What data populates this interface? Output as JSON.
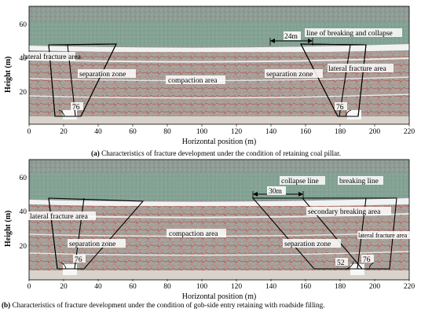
{
  "figure": {
    "panels": [
      {
        "id": "a",
        "caption_label": "(a)",
        "caption_text": " Characteristics of fracture development under the condition of retaining coal pillar.",
        "y_axis_title": "Height (m)",
        "x_axis_title": "Horizontal position (m)",
        "x_ticks": [
          "0",
          "20",
          "40",
          "60",
          "80",
          "100",
          "120",
          "140",
          "160",
          "180",
          "200",
          "220"
        ],
        "y_ticks": [
          "20",
          "40",
          "60"
        ],
        "annotations": {
          "lateral_left": "lateral fracture area",
          "separation_left": "separation zone",
          "compaction": "compaction area",
          "separation_right": "separation zone",
          "lateral_right": "lateral fracture area",
          "breaking_collapse": "line of breaking and collapse",
          "width": "24m",
          "angle_left": "76",
          "angle_right": "76"
        }
      },
      {
        "id": "b",
        "caption_label": "(b)",
        "caption_text": " Characteristics of fracture development under the condition of gob-side entry retaining with roadside filling.",
        "y_axis_title": "Height (m)",
        "x_axis_title": "Horizontal position (m)",
        "x_ticks": [
          "0",
          "20",
          "40",
          "60",
          "80",
          "100",
          "120",
          "140",
          "160",
          "180",
          "200",
          "220"
        ],
        "y_ticks": [
          "20",
          "40",
          "60"
        ],
        "annotations": {
          "lateral_left": "lateral fracture area",
          "separation_left": "separation zone",
          "compaction": "compaction area",
          "separation_right": "separation zone",
          "lateral_right": "lateral fracture area",
          "collapse_line": "collapse line",
          "breaking_line": "breaking line",
          "secondary": "secondary breaking area",
          "width": "30m",
          "angle_left": "76",
          "angle_mid": "52",
          "angle_right": "76"
        }
      }
    ]
  },
  "colors": {
    "rock_gray": "#8a9690",
    "rock_green": "#7fa594",
    "fracture_red": "#c24a4a",
    "white_band": "#f2f2f2"
  }
}
